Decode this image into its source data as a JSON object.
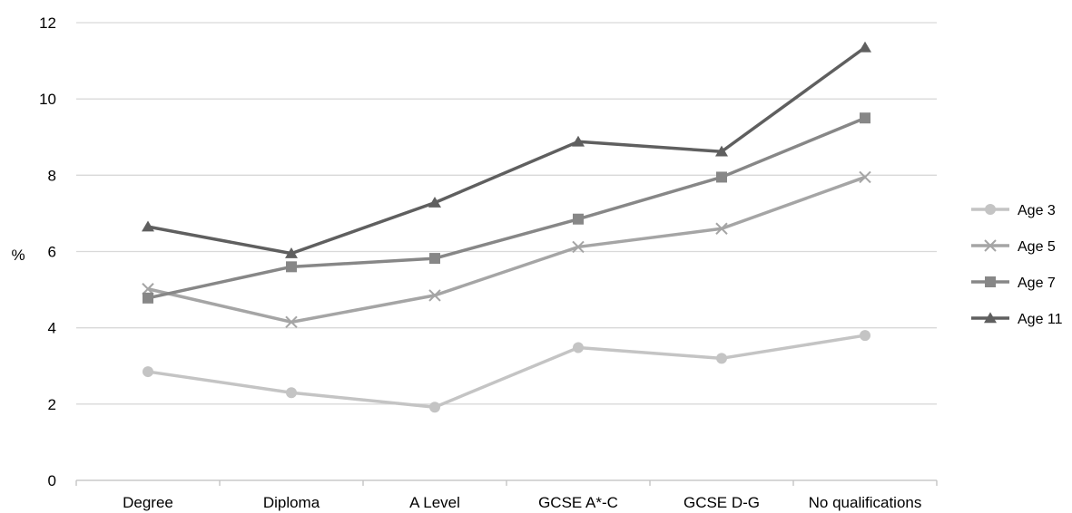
{
  "chart_data": {
    "type": "line",
    "title": "",
    "xlabel": "",
    "ylabel": "%",
    "ylim": [
      0,
      12
    ],
    "yticks": [
      "0",
      "2",
      "4",
      "6",
      "8",
      "10",
      "12"
    ],
    "categories": [
      "Degree",
      "Diploma",
      "A Level",
      "GCSE A*-C",
      "GCSE D-G",
      "No qualifications"
    ],
    "grid": "horizontal",
    "legend_position": "right",
    "series": [
      {
        "name": "Age 3",
        "marker": "circle",
        "color": "#c4c4c4",
        "values": [
          2.85,
          2.3,
          1.92,
          3.48,
          3.2,
          3.8
        ]
      },
      {
        "name": "Age 5",
        "marker": "x",
        "color": "#a5a5a5",
        "values": [
          5.02,
          4.15,
          4.85,
          6.12,
          6.6,
          7.95
        ]
      },
      {
        "name": "Age 7",
        "marker": "square",
        "color": "#878787",
        "values": [
          4.78,
          5.6,
          5.82,
          6.85,
          7.95,
          9.5
        ]
      },
      {
        "name": "Age 11",
        "marker": "triangle",
        "color": "#5f5f5f",
        "values": [
          6.65,
          5.95,
          7.28,
          8.88,
          8.62,
          11.35
        ]
      }
    ]
  }
}
